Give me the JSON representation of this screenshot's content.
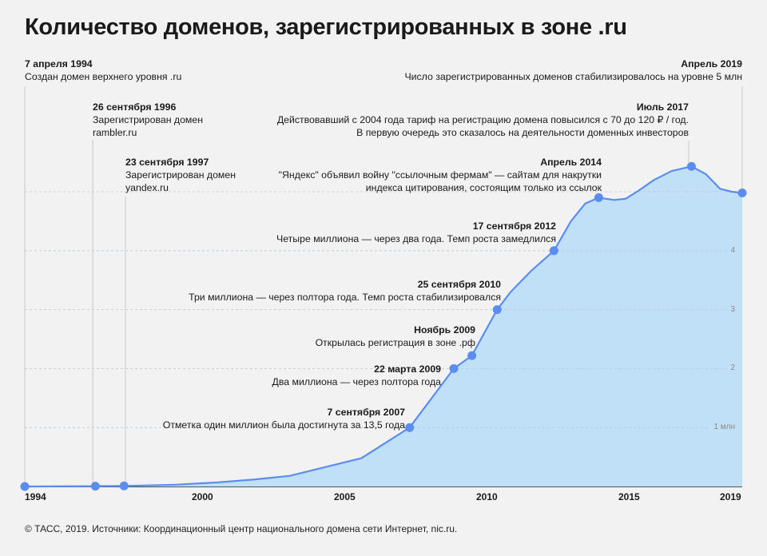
{
  "title": "Количество доменов, зарегистрированных в зоне .ru",
  "source": "© ТАСС, 2019. Источники: Координационный центр национального домена сети Интернет, nic.ru.",
  "colors": {
    "line": "#5b8def",
    "fill": "#c0e0f7",
    "point": "#5b8def",
    "background": "#f2f2f2"
  },
  "chart_data": {
    "type": "area",
    "title": "Количество доменов, зарегистрированных в зоне .ru",
    "xlabel": "",
    "ylabel": "",
    "x_ticks": [
      "1994",
      "2000",
      "2005",
      "2010",
      "2015",
      "2019"
    ],
    "y_ticks": [
      "1 млн",
      "2",
      "3",
      "4"
    ],
    "xlim": [
      1994.27,
      2019.27
    ],
    "ylim": [
      0,
      5.6
    ],
    "grid": "dashed horizontal at 1–5 млн",
    "x": [
      1994.27,
      1996.73,
      1997.73,
      1999.5,
      2001,
      2002.3,
      2003.5,
      2006,
      2007.68,
      2009.22,
      2009.85,
      2010.73,
      2011.2,
      2011.9,
      2012.71,
      2013.3,
      2013.8,
      2014.27,
      2014.8,
      2015.2,
      2015.6,
      2016.2,
      2016.8,
      2017.5,
      2018,
      2018.5,
      2018.9,
      2019.27
    ],
    "values": [
      0,
      0.005,
      0.01,
      0.03,
      0.07,
      0.12,
      0.18,
      0.48,
      1.0,
      2.0,
      2.22,
      3.0,
      3.3,
      3.65,
      4.0,
      4.5,
      4.8,
      4.9,
      4.86,
      4.88,
      5.0,
      5.2,
      5.35,
      5.43,
      5.3,
      5.05,
      5.0,
      4.98
    ],
    "highlighted": [
      1994.27,
      1996.73,
      1997.73,
      2007.68,
      2009.22,
      2009.85,
      2010.73,
      2012.71,
      2014.27,
      2017.5,
      2019.27
    ]
  },
  "annotations": [
    {
      "date": "7 апреля 1994",
      "lines": [
        "Создан домен верхнего уровня .ru"
      ]
    },
    {
      "date": "26 сентября 1996",
      "lines": [
        "Зарегистрирован домен",
        "rambler.ru"
      ]
    },
    {
      "date": "23 сентября 1997",
      "lines": [
        "Зарегистрирован домен",
        "yandex.ru"
      ]
    },
    {
      "date": "7 сентября 2007",
      "lines": [
        "Отметка один миллион была достигнута за 13,5 года"
      ]
    },
    {
      "date": "22 марта 2009",
      "lines": [
        "Два миллиона — через полтора года"
      ]
    },
    {
      "date": "Ноябрь 2009",
      "lines": [
        "Открылась регистрация в зоне .рф"
      ]
    },
    {
      "date": "25 сентября 2010",
      "lines": [
        "Три миллиона — через полтора года. Темп роста стабилизировался"
      ]
    },
    {
      "date": "17 сентября 2012",
      "lines": [
        "Четыре миллиона — через два года. Темп роста замедлился"
      ]
    },
    {
      "date": "Апрель 2014",
      "lines": [
        "\"Яндекс\" объявил войну \"ссылочным фермам\" — сайтам для накрутки",
        "индекса цитирования, состоящим только из ссылок"
      ]
    },
    {
      "date": "Июль 2017",
      "lines": [
        "Действовавший с 2004 года тариф на регистрацию домена повысился с 70 до 120 ₽ / год.",
        "В первую очередь это сказалось на деятельности доменных инвесторов"
      ]
    },
    {
      "date": "Апрель 2019",
      "lines": [
        "Число зарегистрированных доменов стабилизировалось на уровне 5 млн"
      ]
    }
  ]
}
